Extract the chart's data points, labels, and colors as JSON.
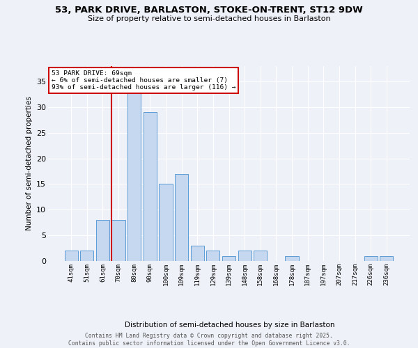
{
  "title1": "53, PARK DRIVE, BARLASTON, STOKE-ON-TRENT, ST12 9DW",
  "title2": "Size of property relative to semi-detached houses in Barlaston",
  "xlabel": "Distribution of semi-detached houses by size in Barlaston",
  "ylabel": "Number of semi-detached properties",
  "categories": [
    "41sqm",
    "51sqm",
    "61sqm",
    "70sqm",
    "80sqm",
    "90sqm",
    "100sqm",
    "109sqm",
    "119sqm",
    "129sqm",
    "139sqm",
    "148sqm",
    "158sqm",
    "168sqm",
    "178sqm",
    "187sqm",
    "197sqm",
    "207sqm",
    "217sqm",
    "226sqm",
    "236sqm"
  ],
  "values": [
    2,
    2,
    8,
    8,
    33,
    29,
    15,
    17,
    3,
    2,
    1,
    2,
    2,
    0,
    1,
    0,
    0,
    0,
    0,
    1,
    1
  ],
  "bar_color": "#c5d8f0",
  "bar_edge_color": "#5b9bd5",
  "highlight_bin_index": 3,
  "vline_color": "#cc0000",
  "annotation_text": "53 PARK DRIVE: 69sqm\n← 6% of semi-detached houses are smaller (7)\n93% of semi-detached houses are larger (116) →",
  "annotation_box_color": "#ffffff",
  "annotation_box_edge": "#cc0000",
  "footer_text": "Contains HM Land Registry data © Crown copyright and database right 2025.\nContains public sector information licensed under the Open Government Licence v3.0.",
  "ylim": [
    0,
    38
  ],
  "yticks": [
    0,
    5,
    10,
    15,
    20,
    25,
    30,
    35
  ],
  "background_color": "#eef2f8",
  "grid_color": "#ffffff"
}
